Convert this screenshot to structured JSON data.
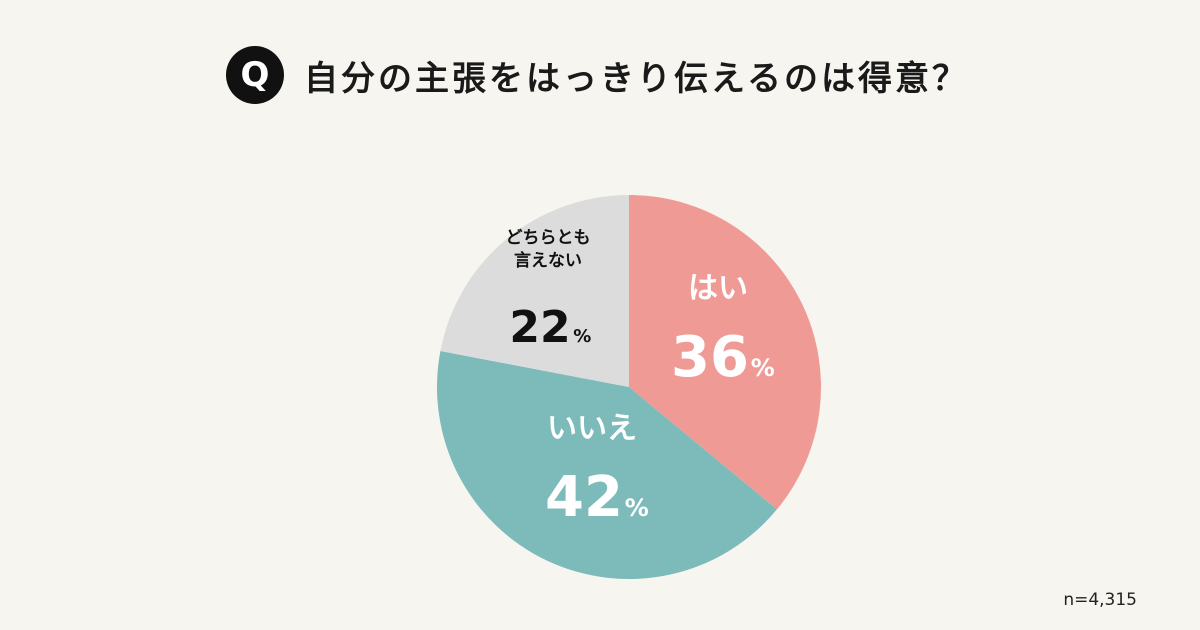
{
  "question": {
    "badge": "Q",
    "title": "自分の主張をはっきり伝えるのは得意？"
  },
  "sample_size": "n=4,315",
  "chart_data": {
    "type": "pie",
    "title": "自分の主張をはっきり伝えるのは得意？",
    "start_angle_deg": 0,
    "direction": "clockwise",
    "slices": [
      {
        "label": "はい",
        "value": 36,
        "unit": "%",
        "color": "#f09a96",
        "text_color": "#ffffff"
      },
      {
        "label": "いいえ",
        "value": 42,
        "unit": "%",
        "color": "#7dbbbb",
        "text_color": "#ffffff"
      },
      {
        "label": "どちらとも\n言えない",
        "value": 22,
        "unit": "%",
        "color": "#dcdcdc",
        "text_color": "#111111"
      }
    ]
  }
}
